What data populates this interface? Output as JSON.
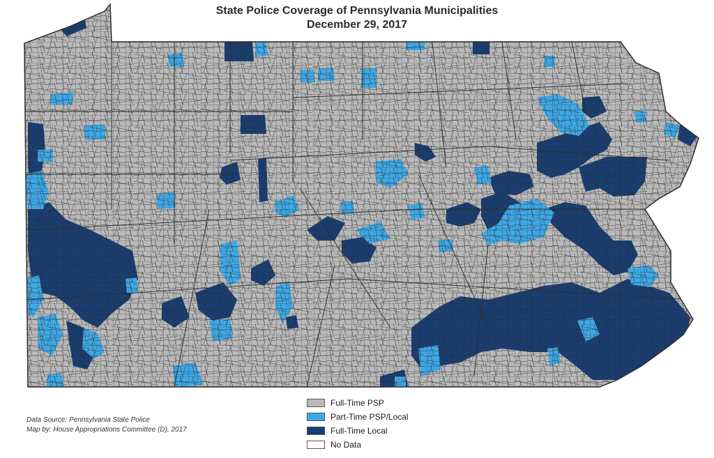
{
  "map": {
    "title": "State Police Coverage of Pennsylvania Municipalities",
    "subtitle": "December 29, 2017",
    "legend": [
      {
        "label": "Full-Time PSP",
        "color": "#b9b9b9",
        "icon": "gray-swatch-icon"
      },
      {
        "label": "Part-Time PSP/Local",
        "color": "#3ea8e6",
        "icon": "light-blue-swatch-icon"
      },
      {
        "label": "Full-Time Local",
        "color": "#183e73",
        "icon": "dark-blue-swatch-icon"
      },
      {
        "label": "No Data",
        "color": "#ffffff",
        "icon": "white-swatch-icon"
      }
    ],
    "credits": {
      "source": "Data Source: Pennsylvania State Police",
      "author": "Map by: House Appropriations Committee (D), 2017"
    },
    "colors": {
      "full_time_psp": "#b9b9b9",
      "part_time": "#3ea8e6",
      "full_time_local": "#183e73",
      "borders": "#2e2e2e"
    }
  }
}
